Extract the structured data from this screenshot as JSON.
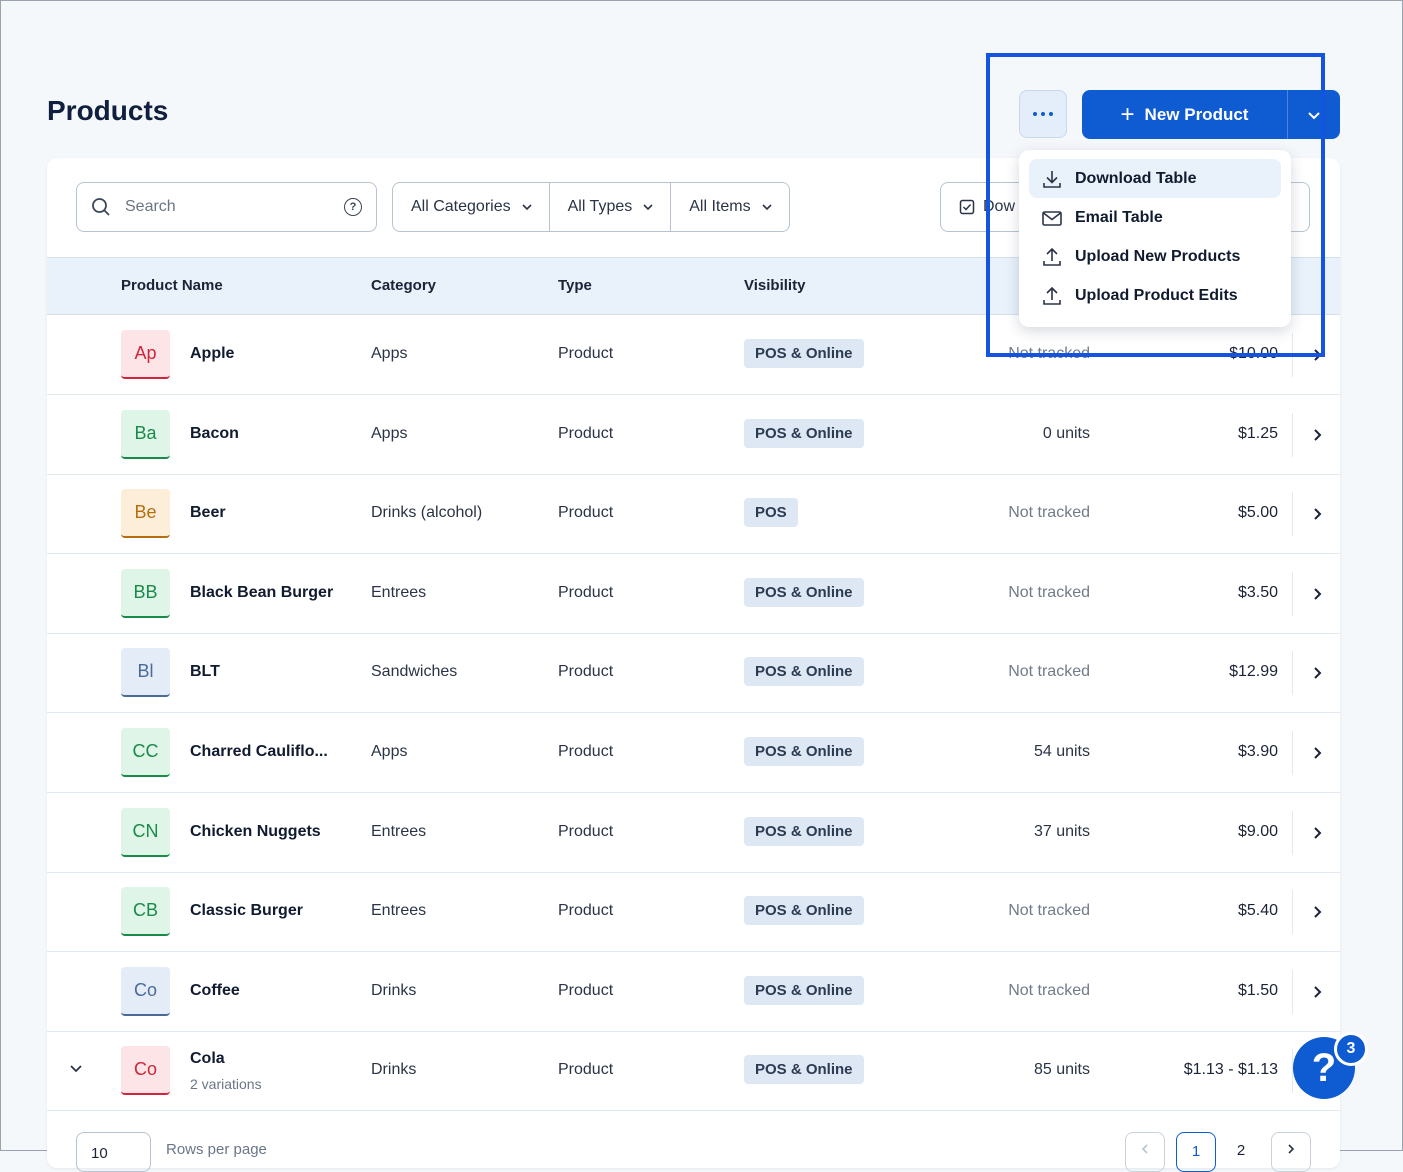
{
  "header": {
    "title": "Products",
    "new_product_label": "New Product"
  },
  "toolbar": {
    "search_placeholder": "Search",
    "filters": [
      "All Categories",
      "All Types",
      "All Items"
    ],
    "download_label": "Dow"
  },
  "table": {
    "columns": [
      "Product Name",
      "Category",
      "Type",
      "Visibility"
    ],
    "rows": [
      {
        "initials": "Ap",
        "name": "Apple",
        "category": "Apps",
        "type": "Product",
        "visibility": "POS & Online",
        "stock": "Not tracked",
        "price": "$10.00",
        "color": "#d0253a",
        "bg": "#fde4e6"
      },
      {
        "initials": "Ba",
        "name": "Bacon",
        "category": "Apps",
        "type": "Product",
        "visibility": "POS & Online",
        "stock": "0 units",
        "price": "$1.25",
        "color": "#1a8a4a",
        "bg": "#dff5e7"
      },
      {
        "initials": "Be",
        "name": "Beer",
        "category": "Drinks (alcohol)",
        "type": "Product",
        "visibility": "POS",
        "stock": "Not tracked",
        "price": "$5.00",
        "color": "#b56d10",
        "bg": "#fdeed9"
      },
      {
        "initials": "BB",
        "name": "Black Bean Burger",
        "category": "Entrees",
        "type": "Product",
        "visibility": "POS & Online",
        "stock": "Not tracked",
        "price": "$3.50",
        "color": "#1a8a4a",
        "bg": "#dff5e7"
      },
      {
        "initials": "Bl",
        "name": "BLT",
        "category": "Sandwiches",
        "type": "Product",
        "visibility": "POS & Online",
        "stock": "Not tracked",
        "price": "$12.99",
        "color": "#4a6a98",
        "bg": "#e3ecf7"
      },
      {
        "initials": "CC",
        "name": "Charred Cauliflo...",
        "category": "Apps",
        "type": "Product",
        "visibility": "POS & Online",
        "stock": "54 units",
        "price": "$3.90",
        "color": "#1a8a4a",
        "bg": "#dff5e7"
      },
      {
        "initials": "CN",
        "name": "Chicken Nuggets",
        "category": "Entrees",
        "type": "Product",
        "visibility": "POS & Online",
        "stock": "37 units",
        "price": "$9.00",
        "color": "#1a8a4a",
        "bg": "#dff5e7"
      },
      {
        "initials": "CB",
        "name": "Classic Burger",
        "category": "Entrees",
        "type": "Product",
        "visibility": "POS & Online",
        "stock": "Not tracked",
        "price": "$5.40",
        "color": "#1a8a4a",
        "bg": "#dff5e7"
      },
      {
        "initials": "Co",
        "name": "Coffee",
        "category": "Drinks",
        "type": "Product",
        "visibility": "POS & Online",
        "stock": "Not tracked",
        "price": "$1.50",
        "color": "#4a6a98",
        "bg": "#e3ecf7"
      },
      {
        "initials": "Co",
        "name": "Cola",
        "variations": "2 variations",
        "category": "Drinks",
        "type": "Product",
        "visibility": "POS & Online",
        "stock": "85 units",
        "price": "$1.13 - $1.13",
        "color": "#d0253a",
        "bg": "#fde4e6"
      }
    ]
  },
  "pagination": {
    "rows_per_page": "10",
    "rows_label": "Rows per page",
    "pages": [
      "1",
      "2"
    ]
  },
  "menu": {
    "items": [
      "Download Table",
      "Email Table",
      "Upload New Products",
      "Upload Product Edits"
    ]
  },
  "help": {
    "badge_count": "3",
    "glyph": "?"
  },
  "colors": {
    "accent": "#0f5bd1",
    "highlight": "#1454e0"
  }
}
